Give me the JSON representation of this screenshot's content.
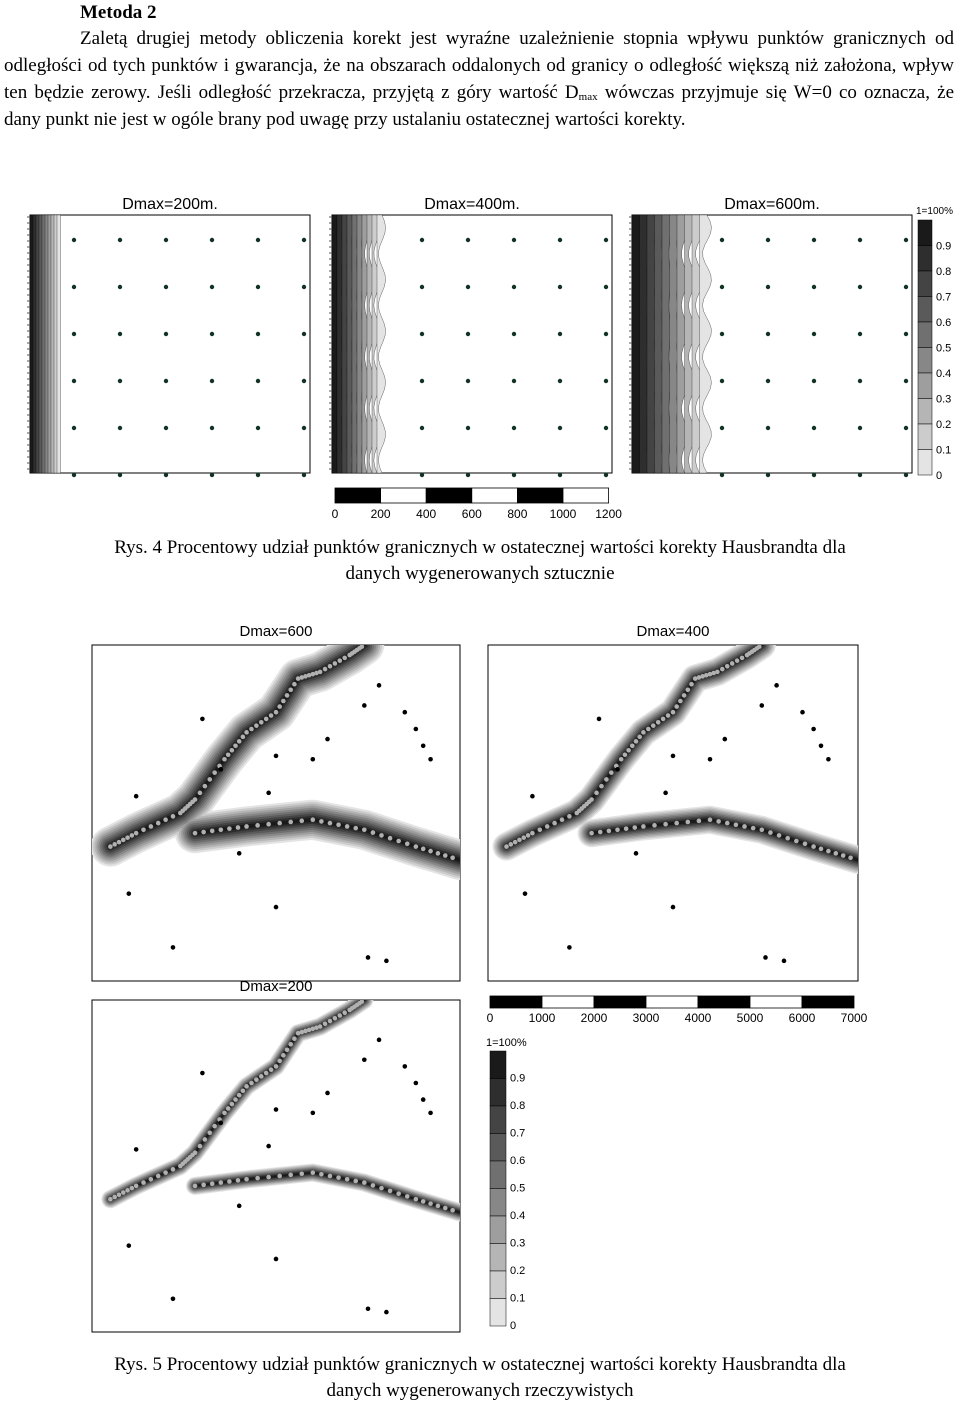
{
  "section_heading": "Metoda 2",
  "paragraph": {
    "part1": "Zaletą drugiej metody obliczenia korekt jest wyraźne uzależnienie stopnia wpływu punktów granicznych od odległości od tych punktów i gwarancja, że na obszarach oddalonych od granicy o odległość większą niż założona, wpływ ten będzie zerowy. Jeśli odległość przekracza, przyjętą z góry wartość D",
    "sub": "max",
    "part2": " wówczas przyjmuje się W=0 co oznacza, że dany punkt nie jest w ogóle brany pod uwagę przy ustalaniu ostatecznej wartości korekty."
  },
  "figure4": {
    "panel_titles": [
      "Dmax=200m.",
      "Dmax=400m.",
      "Dmax=600m."
    ],
    "legend_labels": [
      "1=100%",
      "0.9",
      "0.8",
      "0.7",
      "0.6",
      "0.5",
      "0.4",
      "0.3",
      "0.2",
      "0.1",
      "0"
    ],
    "scale_labels": [
      "0",
      "200",
      "400",
      "600",
      "800",
      "1000",
      "1200"
    ],
    "caption_line1": "Rys. 4 Procentowy  udział punktów granicznych w ostatecznej wartości korekty Hausbrandta dla",
    "caption_line2": "danych wygenerowanych sztucznie"
  },
  "figure5": {
    "panel_titles": [
      "Dmax=600",
      "Dmax=400",
      "Dmax=200"
    ],
    "scale_labels": [
      "0",
      "1000",
      "2000",
      "3000",
      "4000",
      "5000",
      "6000",
      "7000"
    ],
    "legend_labels": [
      "1=100%",
      "0.9",
      "0.8",
      "0.7",
      "0.6",
      "0.5",
      "0.4",
      "0.3",
      "0.2",
      "0.1",
      "0"
    ],
    "caption_line1": "Rys. 5 Procentowy  udział punktów granicznych w ostatecznej wartości korekty Hausbrandta dla",
    "caption_line2": "danych wygenerowanych rzeczywistych"
  },
  "colors": {
    "ramp": [
      "#1a1a1a",
      "#2e2e2e",
      "#444444",
      "#5a5a5a",
      "#707070",
      "#878787",
      "#9e9e9e",
      "#b5b5b5",
      "#cccccc",
      "#e4e4e4",
      "#ffffff"
    ],
    "dot_dark": "#113322",
    "dot_grey": "#b0b0b0"
  }
}
